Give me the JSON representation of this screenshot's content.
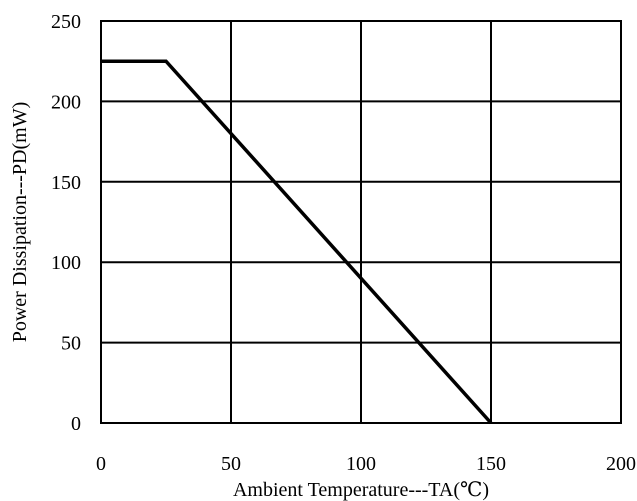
{
  "chart_data": {
    "type": "line",
    "title": "",
    "xlabel": "Ambient Temperature---TA(℃)",
    "ylabel": "Power Dissipation---PD(mW)",
    "xlim": [
      0,
      200
    ],
    "ylim": [
      0,
      250
    ],
    "x_ticks": [
      0,
      50,
      100,
      150,
      200
    ],
    "y_ticks": [
      0,
      50,
      100,
      150,
      200,
      250
    ],
    "grid": true,
    "series": [
      {
        "x": [
          0,
          25,
          150
        ],
        "y": [
          225,
          225,
          0
        ]
      }
    ]
  }
}
